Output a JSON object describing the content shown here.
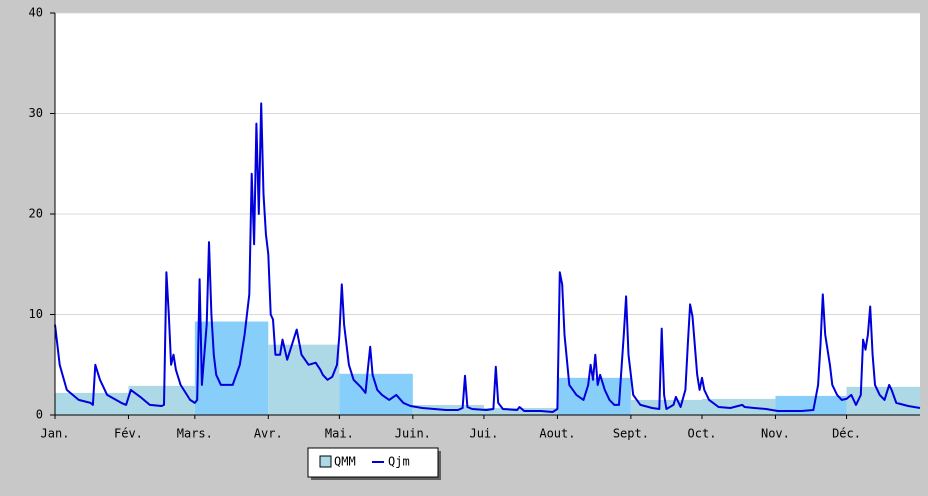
{
  "chart_data": {
    "type": "bar_line",
    "xlim": [
      0,
      365
    ],
    "xticks": [
      {
        "value": 0,
        "label": "Jan."
      },
      {
        "value": 31,
        "label": "Fév."
      },
      {
        "value": 59,
        "label": "Mars."
      },
      {
        "value": 90,
        "label": "Avr."
      },
      {
        "value": 120,
        "label": "Mai."
      },
      {
        "value": 151,
        "label": "Juin."
      },
      {
        "value": 181,
        "label": "Jui."
      },
      {
        "value": 212,
        "label": "Aout."
      },
      {
        "value": 243,
        "label": "Sept."
      },
      {
        "value": 273,
        "label": "Oct."
      },
      {
        "value": 304,
        "label": "Nov."
      },
      {
        "value": 334,
        "label": "Déc."
      }
    ],
    "ylim": [
      0,
      40
    ],
    "yticks": [
      0,
      10,
      20,
      30,
      40
    ],
    "grid": true,
    "bars": {
      "name": "QMM",
      "color": "#add8e6",
      "bins": [
        0,
        31,
        59,
        90,
        120,
        151,
        181,
        212,
        243,
        273,
        304,
        334,
        365
      ],
      "values": [
        2.2,
        2.9,
        9.3,
        7.0,
        4.1,
        1.0,
        0.7,
        3.7,
        1.5,
        1.6,
        1.9,
        2.8
      ],
      "colors": [
        "#add8e6",
        "#add8e6",
        "#87cefa",
        "#add8e6",
        "#87cefa",
        "#add8e6",
        "#add8e6",
        "#87cefa",
        "#add8e6",
        "#add8e6",
        "#87cefa",
        "#add8e6"
      ]
    },
    "series": [
      {
        "name": "Qjm",
        "color": "#0000dd",
        "x": [
          0,
          2,
          5,
          10,
          15,
          16,
          17,
          19,
          22,
          28,
          30,
          32,
          36,
          40,
          45,
          46,
          47,
          48,
          49,
          50,
          51,
          53,
          57,
          59,
          60,
          61,
          62,
          64,
          65,
          66,
          67,
          68,
          70,
          75,
          78,
          80,
          82,
          83,
          84,
          85,
          86,
          87,
          88,
          89,
          90,
          91,
          92,
          93,
          95,
          96,
          98,
          100,
          102,
          104,
          107,
          110,
          112,
          113,
          115,
          117,
          119,
          120,
          121,
          122,
          124,
          126,
          129,
          131,
          132,
          133,
          134,
          136,
          138,
          141,
          144,
          147,
          150,
          155,
          160,
          165,
          170,
          172,
          173,
          174,
          176,
          182,
          185,
          186,
          187,
          189,
          195,
          196,
          198,
          205,
          210,
          212,
          213,
          214,
          215,
          217,
          220,
          223,
          225,
          226,
          227,
          228,
          229,
          230,
          232,
          234,
          236,
          238,
          240,
          241,
          242,
          244,
          247,
          252,
          255,
          256,
          257,
          258,
          261,
          262,
          264,
          266,
          267,
          268,
          269,
          271,
          272,
          273,
          274,
          276,
          280,
          285,
          290,
          291,
          295,
          300,
          305,
          315,
          320,
          322,
          323,
          324,
          325,
          327,
          328,
          330,
          332,
          334,
          336,
          338,
          340,
          341,
          342,
          343,
          344,
          345,
          346,
          348,
          350,
          352,
          353,
          355,
          360,
          365
        ],
        "values": [
          9,
          5,
          2.5,
          1.5,
          1.2,
          1.0,
          5,
          3.5,
          2,
          1.2,
          1,
          2.5,
          1.8,
          1,
          0.9,
          1,
          14.2,
          10,
          5,
          6,
          4.5,
          3,
          1.5,
          1.2,
          1.5,
          13.5,
          3,
          9,
          17.2,
          10,
          6,
          4,
          3,
          3,
          5,
          8,
          12,
          24,
          17,
          29,
          20,
          31,
          22,
          18,
          16,
          10,
          9.5,
          6,
          6,
          7.5,
          5.5,
          7,
          8.5,
          6,
          5,
          5.2,
          4.5,
          4,
          3.5,
          3.8,
          5,
          8,
          13,
          9,
          5,
          3.5,
          2.8,
          2.2,
          4.5,
          6.8,
          4,
          2.5,
          2,
          1.5,
          2,
          1.2,
          0.9,
          0.7,
          0.6,
          0.5,
          0.5,
          0.7,
          3.9,
          0.8,
          0.6,
          0.5,
          0.6,
          4.8,
          1.2,
          0.6,
          0.5,
          0.8,
          0.4,
          0.4,
          0.3,
          0.6,
          14.2,
          13,
          8,
          3,
          2,
          1.5,
          3,
          5,
          3.5,
          6,
          3,
          4,
          2.5,
          1.5,
          1,
          1,
          8,
          11.8,
          6,
          2,
          1,
          0.7,
          0.6,
          8.6,
          2,
          0.6,
          1,
          1.8,
          0.8,
          2.5,
          7,
          11,
          9.8,
          4,
          2.5,
          3.7,
          2.5,
          1.5,
          0.8,
          0.7,
          1,
          0.8,
          0.7,
          0.6,
          0.4,
          0.4,
          0.5,
          3,
          7,
          12,
          8,
          5,
          3,
          2,
          1.5,
          1.6,
          2,
          1,
          2,
          7.5,
          6.5,
          8,
          10.8,
          6,
          3,
          2,
          1.5,
          3,
          2.5,
          1.2,
          0.9,
          0.7
        ]
      }
    ]
  }
}
